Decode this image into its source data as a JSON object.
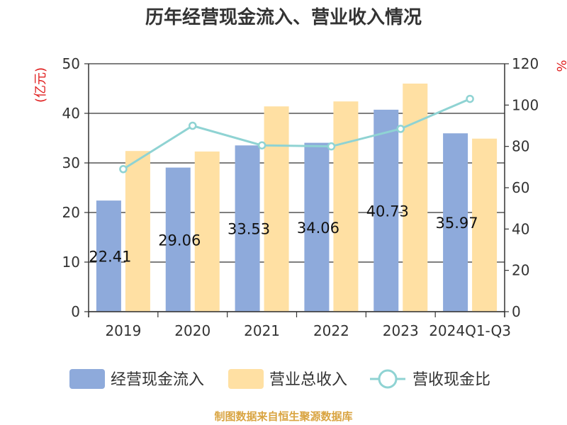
{
  "chart_data": {
    "type": "bar",
    "title": "历年经营现金流入、营业收入情况",
    "categories": [
      "2019",
      "2020",
      "2021",
      "2022",
      "2023",
      "2024Q1-Q3"
    ],
    "left_axis": {
      "unit": "(亿元)",
      "ylim": [
        0,
        50
      ],
      "ticks": [
        "0",
        "10",
        "20",
        "30",
        "40",
        "50"
      ]
    },
    "right_axis": {
      "unit": "%",
      "ylim": [
        0,
        120
      ],
      "ticks": [
        "0",
        "20",
        "40",
        "60",
        "80",
        "100",
        "120"
      ]
    },
    "grid": true,
    "series": [
      {
        "name": "经营现金流入",
        "type": "bar",
        "axis": "left",
        "color": "#8eaadb",
        "values": [
          22.41,
          29.06,
          33.53,
          34.06,
          40.73,
          35.97
        ],
        "data_labels": [
          "22.41",
          "29.06",
          "33.53",
          "34.06",
          "40.73",
          "35.97"
        ]
      },
      {
        "name": "营业总收入",
        "type": "bar",
        "axis": "left",
        "color": "#ffe0a3",
        "values": [
          32.4,
          32.3,
          41.4,
          42.4,
          46.0,
          34.9
        ]
      },
      {
        "name": "营收现金比",
        "type": "line",
        "axis": "right",
        "color": "#8fd3d3",
        "values": [
          69,
          90,
          80.5,
          80,
          88.5,
          103
        ]
      }
    ],
    "legend_position": "bottom"
  },
  "source": "制图数据来自恒生聚源数据库"
}
